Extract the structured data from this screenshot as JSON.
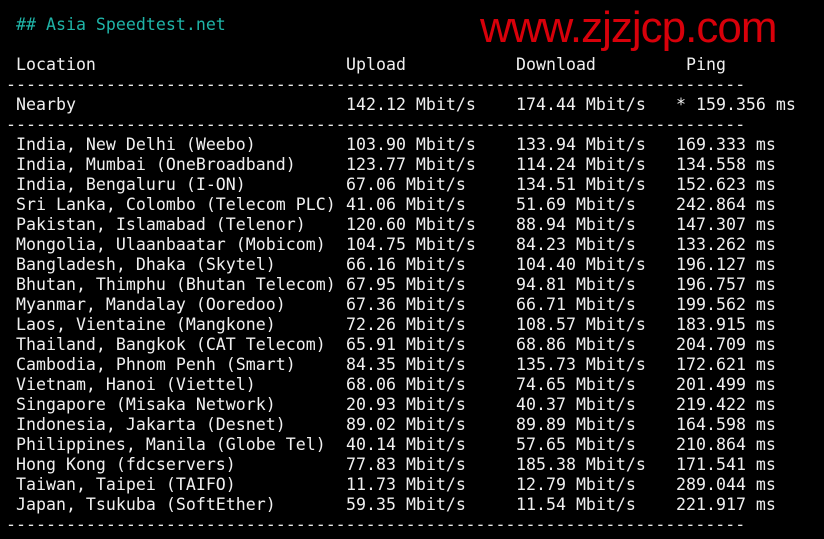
{
  "title": "## Asia Speedtest.net",
  "headers": {
    "location": "Location",
    "upload": "Upload",
    "download": "Download",
    "ping": "Ping"
  },
  "separator": "--------------------------------------------------------------------------",
  "nearby": {
    "location": "Nearby",
    "upload": "142.12 Mbit/s",
    "download": "174.44 Mbit/s",
    "ping": "* 159.356 ms"
  },
  "rows": [
    {
      "location": "India, New Delhi (Weebo)",
      "upload": "103.90 Mbit/s",
      "download": "133.94 Mbit/s",
      "ping": "169.333 ms"
    },
    {
      "location": "India, Mumbai (OneBroadband)",
      "upload": "123.77 Mbit/s",
      "download": "114.24 Mbit/s",
      "ping": "134.558 ms"
    },
    {
      "location": "India, Bengaluru (I-ON)",
      "upload": "67.06 Mbit/s",
      "download": "134.51 Mbit/s",
      "ping": "152.623 ms"
    },
    {
      "location": "Sri Lanka, Colombo (Telecom PLC)",
      "upload": "41.06 Mbit/s",
      "download": "51.69 Mbit/s",
      "ping": "242.864 ms"
    },
    {
      "location": "Pakistan, Islamabad (Telenor)",
      "upload": "120.60 Mbit/s",
      "download": "88.94 Mbit/s",
      "ping": "147.307 ms"
    },
    {
      "location": "Mongolia, Ulaanbaatar (Mobicom)",
      "upload": "104.75 Mbit/s",
      "download": "84.23 Mbit/s",
      "ping": "133.262 ms"
    },
    {
      "location": "Bangladesh, Dhaka (Skytel)",
      "upload": "66.16 Mbit/s",
      "download": "104.40 Mbit/s",
      "ping": "196.127 ms"
    },
    {
      "location": "Bhutan, Thimphu (Bhutan Telecom)",
      "upload": "67.95 Mbit/s",
      "download": "94.81 Mbit/s",
      "ping": "196.757 ms"
    },
    {
      "location": "Myanmar, Mandalay (Ooredoo)",
      "upload": "67.36 Mbit/s",
      "download": "66.71 Mbit/s",
      "ping": "199.562 ms"
    },
    {
      "location": "Laos, Vientaine (Mangkone)",
      "upload": "72.26 Mbit/s",
      "download": "108.57 Mbit/s",
      "ping": "183.915 ms"
    },
    {
      "location": "Thailand, Bangkok (CAT Telecom)",
      "upload": "65.91 Mbit/s",
      "download": "68.86 Mbit/s",
      "ping": "204.709 ms"
    },
    {
      "location": "Cambodia, Phnom Penh (Smart)",
      "upload": "84.35 Mbit/s",
      "download": "135.73 Mbit/s",
      "ping": "172.621 ms"
    },
    {
      "location": "Vietnam, Hanoi (Viettel)",
      "upload": "68.06 Mbit/s",
      "download": "74.65 Mbit/s",
      "ping": "201.499 ms"
    },
    {
      "location": "Singapore (Misaka Network)",
      "upload": "20.93 Mbit/s",
      "download": "40.37 Mbit/s",
      "ping": "219.422 ms"
    },
    {
      "location": "Indonesia, Jakarta (Desnet)",
      "upload": "89.02 Mbit/s",
      "download": "89.89 Mbit/s",
      "ping": "164.598 ms"
    },
    {
      "location": "Philippines, Manila (Globe Tel)",
      "upload": "40.14 Mbit/s",
      "download": "57.65 Mbit/s",
      "ping": "210.864 ms"
    },
    {
      "location": "Hong Kong (fdcservers)",
      "upload": "77.83 Mbit/s",
      "download": "185.38 Mbit/s",
      "ping": "171.541 ms"
    },
    {
      "location": "Taiwan, Taipei (TAIFO)",
      "upload": "11.73 Mbit/s",
      "download": "12.79 Mbit/s",
      "ping": "289.044 ms"
    },
    {
      "location": "Japan, Tsukuba (SoftEther)",
      "upload": "59.35 Mbit/s",
      "download": "11.54 Mbit/s",
      "ping": "221.917 ms"
    }
  ],
  "watermark": "www.zjzjcp.com",
  "colors": {
    "title": "#1fb4a8",
    "text": "#f0f0f0",
    "watermark": "#d8000a",
    "background": "#000000"
  }
}
